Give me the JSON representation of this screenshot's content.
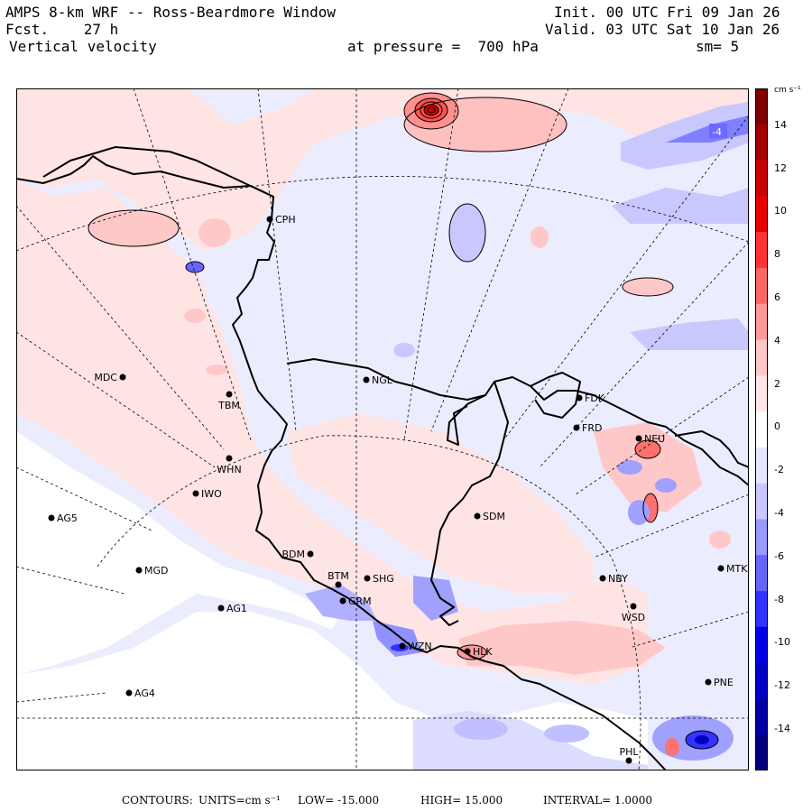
{
  "header": {
    "title": "AMPS 8-km WRF -- Ross-Beardmore Window",
    "fcst_label": "Fcst.",
    "fcst_value": "27 h",
    "field": "Vertical velocity",
    "pressure_label": "at pressure =",
    "pressure_value": "700 hPa",
    "init": "Init. 00 UTC Fri 09 Jan 26",
    "valid": "Valid. 03 UTC Sat 10 Jan 26",
    "smoothing": "sm= 5"
  },
  "colorbar": {
    "units": "cm s⁻¹",
    "ticks": [
      "14",
      "12",
      "10",
      "8",
      "6",
      "4",
      "2",
      "0",
      "-2",
      "-4",
      "-6",
      "-8",
      "-10",
      "-12",
      "-14"
    ],
    "colors": [
      "#7f0000",
      "#a30000",
      "#c70000",
      "#e60000",
      "#ff3333",
      "#ff6666",
      "#ff9999",
      "#ffc8c8",
      "#ffe6e6",
      "#ffffff",
      "#e6e6ff",
      "#c8c8ff",
      "#9999ff",
      "#6666ff",
      "#3333ff",
      "#0000e6",
      "#0000c7",
      "#0000a3",
      "#00007f"
    ]
  },
  "map": {
    "contour_label": "-4",
    "stations": [
      {
        "id": "CPH",
        "name": "CPH"
      },
      {
        "id": "NGL",
        "name": "NGL"
      },
      {
        "id": "MDC",
        "name": "MDC"
      },
      {
        "id": "TBM",
        "name": "TBM"
      },
      {
        "id": "WHN",
        "name": "WHN"
      },
      {
        "id": "IWO",
        "name": "IWO"
      },
      {
        "id": "AG5",
        "name": "AG5"
      },
      {
        "id": "MGD",
        "name": "MGD"
      },
      {
        "id": "AG1",
        "name": "AG1"
      },
      {
        "id": "AG4",
        "name": "AG4"
      },
      {
        "id": "BDM",
        "name": "BDM"
      },
      {
        "id": "BTM",
        "name": "BTM"
      },
      {
        "id": "GRM",
        "name": "GRM"
      },
      {
        "id": "SHG",
        "name": "SHG"
      },
      {
        "id": "SDM",
        "name": "SDM"
      },
      {
        "id": "FDK",
        "name": "FDK"
      },
      {
        "id": "FRD",
        "name": "FRD"
      },
      {
        "id": "NEU",
        "name": "NEU"
      },
      {
        "id": "NBY",
        "name": "NBY"
      },
      {
        "id": "MTK",
        "name": "MTK"
      },
      {
        "id": "WSD",
        "name": "WSD"
      },
      {
        "id": "HLK",
        "name": "HLK"
      },
      {
        "id": "WZN",
        "name": "WZN"
      },
      {
        "id": "PNE",
        "name": "PNE"
      },
      {
        "id": "PHL",
        "name": "PHL"
      }
    ]
  },
  "footer": {
    "contours_label": "CONTOURS:",
    "units_label": "UNITS=cm s⁻¹",
    "low_label": "LOW=",
    "low_value": "-15.000",
    "high_label": "HIGH=",
    "high_value": "15.000",
    "interval_label": "INTERVAL=",
    "interval_value": "1.0000"
  }
}
